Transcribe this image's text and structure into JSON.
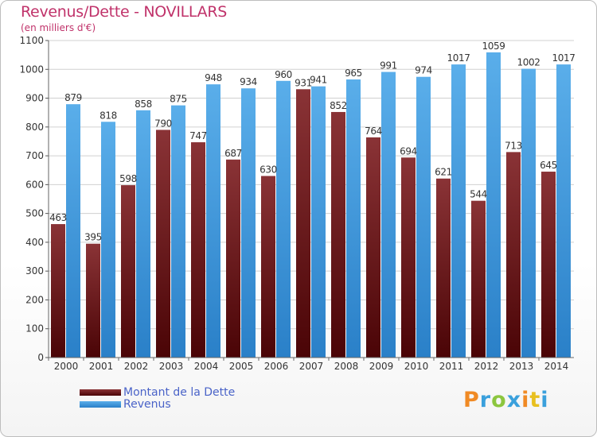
{
  "header": {
    "title": "Revenus/Dette - NOVILLARS",
    "subtitle": "(en milliers d'€)"
  },
  "colors": {
    "dette_top": "#8a3336",
    "dette_bottom": "#4a0406",
    "revenus_top": "#5aaeea",
    "revenus_bottom": "#2a80c8",
    "title": "#c0326a",
    "legend_text": "#4a63c8",
    "grid": "#d0d0d0"
  },
  "chart_data": {
    "type": "bar",
    "categories": [
      "2000",
      "2001",
      "2002",
      "2003",
      "2004",
      "2005",
      "2006",
      "2007",
      "2008",
      "2009",
      "2010",
      "2011",
      "2012",
      "2013",
      "2014"
    ],
    "series": [
      {
        "name": "Montant de la Dette",
        "values": [
          463,
          395,
          598,
          790,
          747,
          687,
          630,
          931,
          852,
          764,
          694,
          621,
          544,
          713,
          645
        ]
      },
      {
        "name": "Revenus",
        "values": [
          879,
          818,
          858,
          875,
          948,
          934,
          960,
          941,
          965,
          991,
          974,
          1017,
          1059,
          1002,
          1017
        ]
      }
    ],
    "yticks": [
      0,
      100,
      200,
      300,
      400,
      500,
      600,
      700,
      800,
      900,
      1000,
      1100
    ],
    "ylim": [
      0,
      1100
    ],
    "grid": true,
    "legend_position": "bottom-left"
  },
  "legend": {
    "items": [
      {
        "label": "Montant de la Dette"
      },
      {
        "label": "Revenus"
      }
    ]
  },
  "logo": {
    "text": "Proxiti",
    "letter_colors": [
      "#f08a24",
      "#3aa0dc",
      "#8cc63f",
      "#3aa0dc",
      "#f08a24",
      "#e8c020",
      "#3aa0dc"
    ]
  }
}
